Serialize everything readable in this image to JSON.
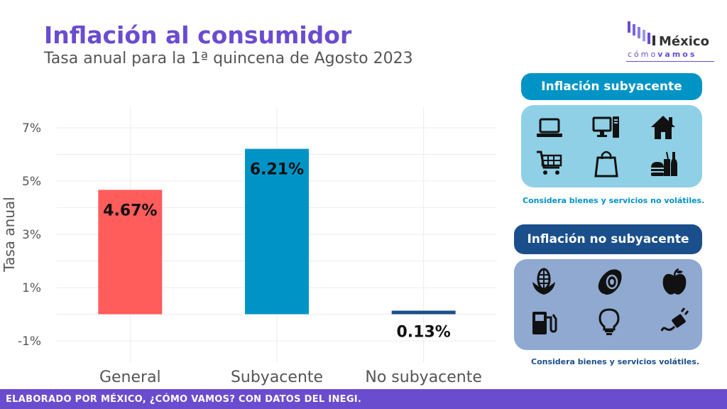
{
  "header": {
    "title": "Inflación al consumidor",
    "subtitle": "Tasa anual para la 1ª quincena de Agosto 2023"
  },
  "logo": {
    "word": "México",
    "sub_light": "cómo",
    "sub_bold": "vamos"
  },
  "chart_data": {
    "type": "bar",
    "categories": [
      "General",
      "Subyacente",
      "No subyacente"
    ],
    "values": [
      4.67,
      6.21,
      0.13
    ],
    "data_labels": [
      "4.67%",
      "6.21%",
      "0.13%"
    ],
    "colors": [
      "#ff5c5c",
      "#0094c6",
      "#1a4f8b"
    ],
    "ylabel": "Tasa anual",
    "ylim": [
      -1.8,
      7.8
    ],
    "yticks": [
      -1,
      1,
      3,
      5,
      7
    ],
    "ytick_labels": [
      "-1%",
      "1%",
      "3%",
      "5%",
      "7%"
    ],
    "grid": true
  },
  "panels": {
    "core": {
      "title": "Inflación subyacente",
      "note": "Considera bienes y servicios no volátiles.",
      "icons": [
        "laptop-icon",
        "desktop-computer-icon",
        "house-icon",
        "shopping-cart-icon",
        "shopping-bag-icon",
        "processed-food-icon"
      ],
      "head_color": "#0094c6",
      "box_color": "#8fd0e6",
      "note_color": "#0094c6"
    },
    "noncore": {
      "title": "Inflación no subyacente",
      "note": "Considera bienes y servicios volátiles.",
      "icons": [
        "corn-icon",
        "avocado-icon",
        "apple-icon",
        "fuel-pump-icon",
        "light-bulb-icon",
        "plug-icon"
      ],
      "head_color": "#1a4f8b",
      "box_color": "#8fa9d0",
      "note_color": "#1a4f8b"
    }
  },
  "footer": {
    "text": "ELABORADO POR MÉXICO, ¿CÓMO VAMOS? CON DATOS DEL INEGI."
  }
}
